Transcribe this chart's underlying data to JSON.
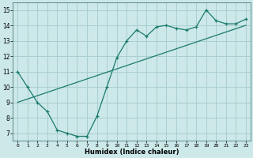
{
  "xlabel": "Humidex (Indice chaleur)",
  "background_color": "#cce8e8",
  "grid_color": "#aacfcf",
  "line_color": "#1a7a6e",
  "xlim": [
    -0.5,
    23.5
  ],
  "ylim": [
    6.5,
    15.5
  ],
  "xticks": [
    0,
    1,
    2,
    3,
    4,
    5,
    6,
    7,
    8,
    9,
    10,
    11,
    12,
    13,
    14,
    15,
    16,
    17,
    18,
    19,
    20,
    21,
    22,
    23
  ],
  "yticks": [
    7,
    8,
    9,
    10,
    11,
    12,
    13,
    14,
    15
  ],
  "curve1_x": [
    0,
    1,
    2,
    3,
    4,
    5,
    6,
    7,
    8,
    9,
    10,
    11,
    12,
    13,
    14,
    15,
    16,
    17,
    18,
    19,
    20,
    21,
    22,
    23
  ],
  "curve1_y": [
    11,
    10,
    9,
    8.4,
    7.2,
    7.0,
    6.8,
    6.8,
    8.1,
    10.0,
    11.9,
    13.0,
    13.7,
    13.3,
    13.9,
    14.0,
    13.8,
    13.7,
    13.9,
    15.0,
    14.3,
    14.1,
    14.1,
    14.4
  ],
  "curve2_x": [
    0,
    23
  ],
  "curve2_y": [
    9.0,
    14.0
  ]
}
